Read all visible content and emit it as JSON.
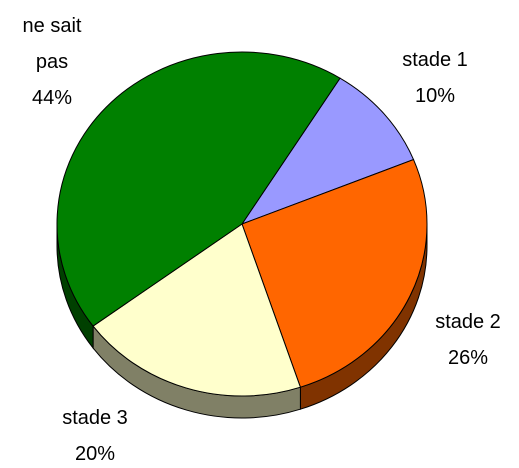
{
  "chart_data": {
    "type": "pie",
    "categories": [
      "stade 1",
      "stade 2",
      "stade 3",
      "ne sait pas"
    ],
    "values": [
      10,
      26,
      20,
      44
    ],
    "value_labels": [
      "10%",
      "26%",
      "20%",
      "44%"
    ],
    "colors": [
      "#9999ff",
      "#ff6600",
      "#ffffcc",
      "#008000"
    ]
  }
}
